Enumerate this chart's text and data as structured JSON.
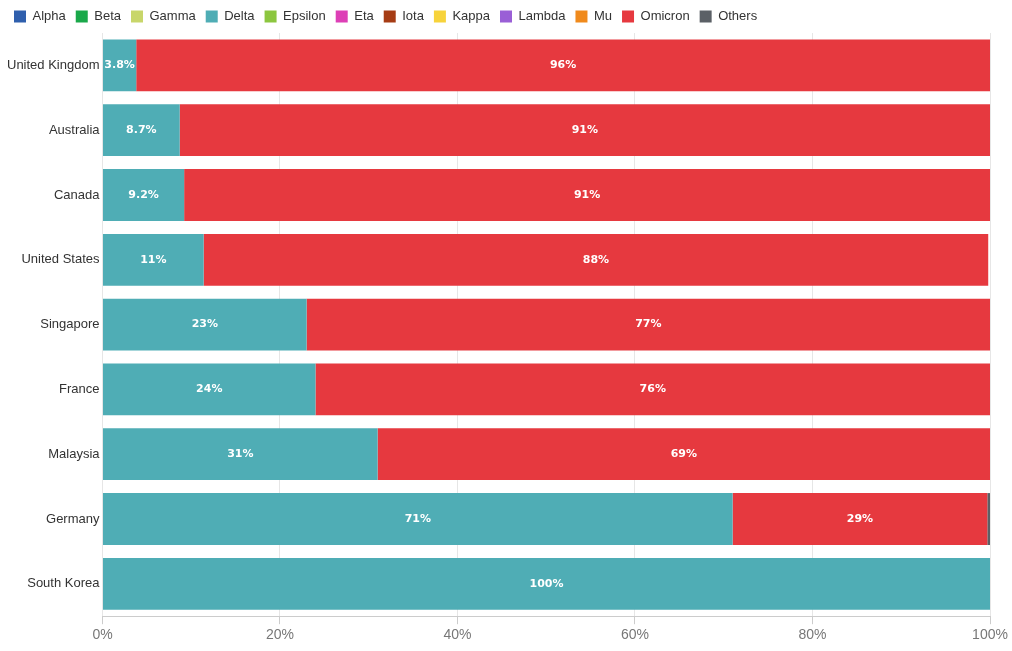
{
  "chart_data": {
    "type": "bar",
    "orientation": "horizontal",
    "stacked": true,
    "categories": [
      "United Kingdom",
      "Australia",
      "Canada",
      "United States",
      "Singapore",
      "France",
      "Malaysia",
      "Germany",
      "South Korea"
    ],
    "series": [
      {
        "name": "Alpha",
        "color": "#2f5fad",
        "values": [
          null,
          null,
          null,
          null,
          null,
          null,
          null,
          null,
          null
        ]
      },
      {
        "name": "Beta",
        "color": "#1aa84a",
        "values": [
          null,
          null,
          null,
          null,
          null,
          null,
          null,
          null,
          null
        ]
      },
      {
        "name": "Gamma",
        "color": "#c8d66a",
        "values": [
          null,
          null,
          null,
          null,
          null,
          null,
          null,
          null,
          null
        ]
      },
      {
        "name": "Delta",
        "color": "#4fadb5",
        "values": [
          3.8,
          8.7,
          9.2,
          11.4,
          23,
          24,
          31,
          71,
          100
        ],
        "value_labels": [
          "3.8%",
          "8.7%",
          "9.2%",
          "11%",
          "23%",
          "24%",
          "31%",
          "71%",
          "100%"
        ]
      },
      {
        "name": "Epsilon",
        "color": "#8cc63f",
        "values": [
          null,
          null,
          null,
          null,
          null,
          null,
          null,
          null,
          null
        ]
      },
      {
        "name": "Eta",
        "color": "#dd3fb6",
        "values": [
          null,
          null,
          null,
          null,
          null,
          null,
          null,
          null,
          null
        ]
      },
      {
        "name": "Iota",
        "color": "#a63c14",
        "values": [
          null,
          null,
          null,
          null,
          null,
          null,
          null,
          null,
          null
        ]
      },
      {
        "name": "Kappa",
        "color": "#f7d33b",
        "values": [
          null,
          null,
          null,
          null,
          null,
          null,
          null,
          null,
          null
        ]
      },
      {
        "name": "Lambda",
        "color": "#9a5fd6",
        "values": [
          null,
          null,
          null,
          null,
          null,
          null,
          null,
          null,
          null
        ]
      },
      {
        "name": "Mu",
        "color": "#f08a1c",
        "values": [
          null,
          null,
          null,
          null,
          null,
          null,
          null,
          null,
          null
        ]
      },
      {
        "name": "Omicron",
        "color": "#e6393f",
        "values": [
          96.2,
          91.3,
          90.8,
          88.4,
          77,
          76,
          69,
          28.7,
          null
        ],
        "value_labels": [
          "96%",
          "91%",
          "91%",
          "88%",
          "77%",
          "76%",
          "69%",
          "29%",
          null
        ]
      },
      {
        "name": "Others",
        "color": "#5b6066",
        "values": [
          null,
          null,
          null,
          null,
          null,
          null,
          null,
          0.3,
          null
        ]
      }
    ],
    "xlim": [
      0,
      100
    ],
    "xticks": [
      {
        "value": 0,
        "label": "0%"
      },
      {
        "value": 20,
        "label": "20%"
      },
      {
        "value": 40,
        "label": "40%"
      },
      {
        "value": 60,
        "label": "60%"
      },
      {
        "value": 80,
        "label": "80%"
      },
      {
        "value": 100,
        "label": "100%"
      }
    ],
    "grid": "x",
    "legend": "top left"
  }
}
